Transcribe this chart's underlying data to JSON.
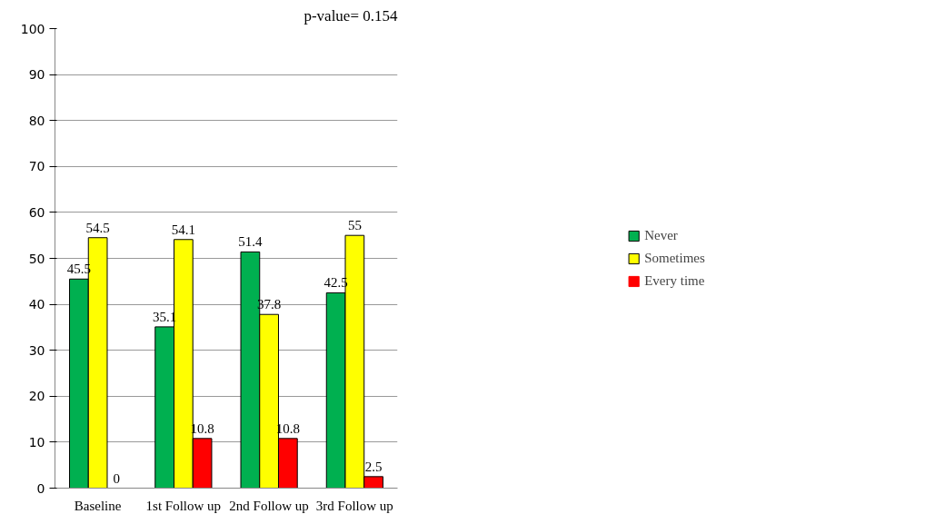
{
  "chart_data": {
    "type": "bar",
    "categories": [
      "Baseline",
      "1st Follow up",
      "2nd Follow up",
      "3rd Follow up"
    ],
    "series": [
      {
        "name": "Never",
        "color": "#00b050",
        "values": [
          45.5,
          35.1,
          51.4,
          42.5
        ]
      },
      {
        "name": "Sometimes",
        "color": "#ffff00",
        "values": [
          54.5,
          54.1,
          37.8,
          55
        ]
      },
      {
        "name": "Every time",
        "color": "#ff0000",
        "values": [
          0,
          10.8,
          10.8,
          2.5
        ]
      }
    ],
    "ylim": [
      0,
      100
    ],
    "yticks": [
      0,
      10,
      20,
      30,
      40,
      50,
      60,
      70,
      80,
      90,
      100
    ],
    "grid": "y",
    "legend": "right",
    "data_labels": true,
    "annotations": [
      "p-value= 0.154"
    ]
  }
}
